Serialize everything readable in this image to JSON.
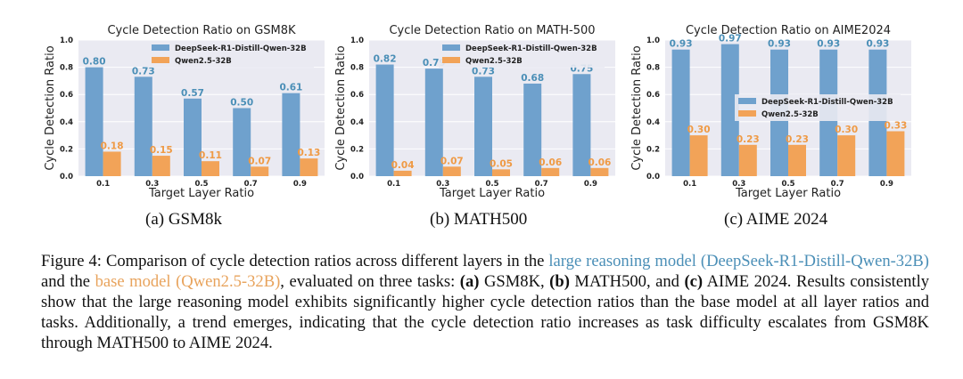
{
  "chart_data": [
    {
      "type": "bar",
      "title": "Cycle Detection Ratio on GSM8K",
      "xlabel": "Target Layer Ratio",
      "ylabel": "Cycle Detection Ratio",
      "categories": [
        "0.1",
        "0.3",
        "0.5",
        "0.7",
        "0.9"
      ],
      "ylim": [
        0,
        1.0
      ],
      "yticks": [
        "0.0",
        "0.2",
        "0.4",
        "0.6",
        "0.8",
        "1.0"
      ],
      "legend_position": "top-right",
      "grid": true,
      "series": [
        {
          "name": "DeepSeek-R1-Distill-Qwen-32B",
          "color": "#6fa1cd",
          "label_color": "#4b8fb7",
          "values": [
            0.8,
            0.73,
            0.57,
            0.5,
            0.61
          ],
          "labels": [
            "0.80",
            "0.73",
            "0.57",
            "0.50",
            "0.61"
          ]
        },
        {
          "name": "Qwen2.5-32B",
          "color": "#f2a358",
          "label_color": "#ef9a45",
          "values": [
            0.18,
            0.15,
            0.11,
            0.07,
            0.13
          ],
          "labels": [
            "0.18",
            "0.15",
            "0.11",
            "0.07",
            "0.13"
          ]
        }
      ]
    },
    {
      "type": "bar",
      "title": "Cycle Detection Ratio on MATH-500",
      "xlabel": "Target Layer Ratio",
      "ylabel": "Cycle Detection Ratio",
      "categories": [
        "0.1",
        "0.3",
        "0.5",
        "0.7",
        "0.9"
      ],
      "ylim": [
        0,
        1.0
      ],
      "yticks": [
        "0.0",
        "0.2",
        "0.4",
        "0.6",
        "0.8",
        "1.0"
      ],
      "legend_position": "top-right",
      "grid": true,
      "series": [
        {
          "name": "DeepSeek-R1-Distill-Qwen-32B",
          "color": "#6fa1cd",
          "label_color": "#4b8fb7",
          "values": [
            0.82,
            0.79,
            0.73,
            0.68,
            0.75
          ],
          "labels": [
            "0.82",
            "0.79",
            "0.73",
            "0.68",
            "0.75"
          ]
        },
        {
          "name": "Qwen2.5-32B",
          "color": "#f2a358",
          "label_color": "#ef9a45",
          "values": [
            0.04,
            0.07,
            0.05,
            0.06,
            0.06
          ],
          "labels": [
            "0.04",
            "0.07",
            "0.05",
            "0.06",
            "0.06"
          ]
        }
      ]
    },
    {
      "type": "bar",
      "title": "Cycle Detection Ratio on AIME2024",
      "xlabel": "Target Layer Ratio",
      "ylabel": "Cycle Detection Ratio",
      "categories": [
        "0.1",
        "0.3",
        "0.5",
        "0.7",
        "0.9"
      ],
      "ylim": [
        0,
        1.0
      ],
      "yticks": [
        "0.0",
        "0.2",
        "0.4",
        "0.6",
        "0.8",
        "1.0"
      ],
      "legend_position": "center-right",
      "grid": true,
      "series": [
        {
          "name": "DeepSeek-R1-Distill-Qwen-32B",
          "color": "#6fa1cd",
          "label_color": "#4b8fb7",
          "values": [
            0.93,
            0.97,
            0.93,
            0.93,
            0.93
          ],
          "labels": [
            "0.93",
            "0.97",
            "0.93",
            "0.93",
            "0.93"
          ]
        },
        {
          "name": "Qwen2.5-32B",
          "color": "#f2a358",
          "label_color": "#ef9a45",
          "values": [
            0.3,
            0.23,
            0.23,
            0.3,
            0.33
          ],
          "labels": [
            "0.30",
            "0.23",
            "0.23",
            "0.30",
            "0.33"
          ]
        }
      ]
    }
  ],
  "subcaptions": [
    "(a) GSM8k",
    "(b) MATH500",
    "(c) AIME 2024"
  ],
  "caption": {
    "prefix": "Figure 4: Comparison of cycle detection ratios across different layers in the ",
    "large_model": "large reasoning model (DeepSeek-R1-Distill-Qwen-32B)",
    "mid1": " and the ",
    "base_model": "base model (Qwen2.5-32B)",
    "mid2": ", evaluated on three tasks: ",
    "a_label": "(a)",
    "a_text": " GSM8K, ",
    "b_label": "(b)",
    "b_text": " MATH500, and ",
    "c_label": "(c)",
    "c_text": " AIME 2024. Results consistently show that the large reasoning model exhibits significantly higher cycle detection ratios than the base model at all layer ratios and tasks. Additionally, a trend emerges, indicating that the cycle detection ratio increases as task difficulty escalates from GSM8K through MATH500 to AIME 2024."
  }
}
